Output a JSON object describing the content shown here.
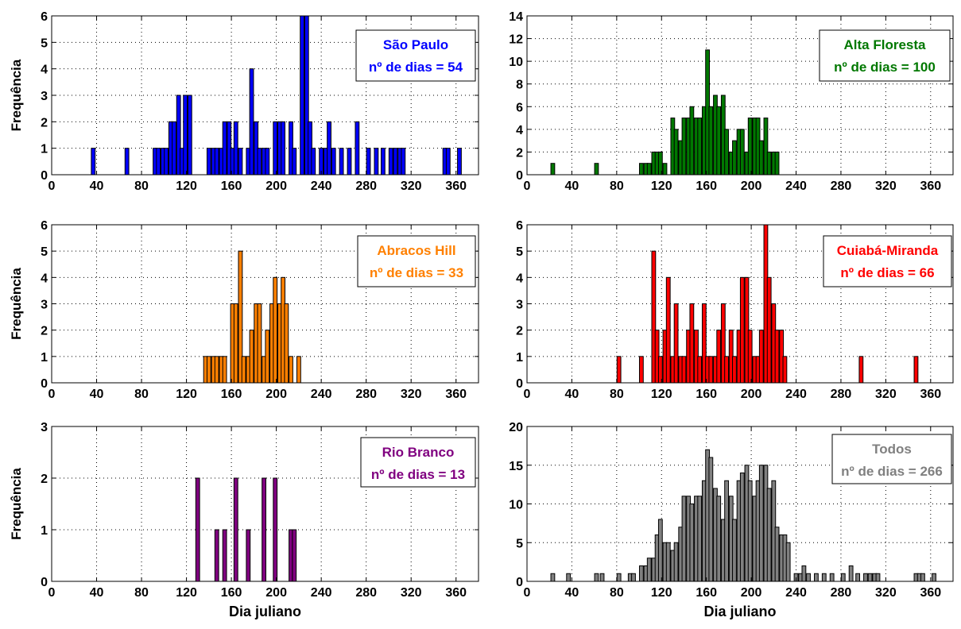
{
  "chart_data": [
    {
      "type": "bar",
      "ylabel": "Frequência",
      "xlabel": "",
      "xlim": [
        0,
        380
      ],
      "ylim": [
        0,
        6
      ],
      "xticks": [
        0,
        40,
        80,
        120,
        160,
        200,
        240,
        280,
        320,
        360
      ],
      "yticks": [
        0,
        1,
        2,
        3,
        4,
        5,
        6
      ],
      "grid": true,
      "color": "#0000ff",
      "legend_position": "top-right",
      "legend": {
        "title": "São Paulo",
        "subtitle": "nº de dias = 54"
      },
      "x": [
        37,
        67,
        92,
        95,
        99,
        102,
        106,
        109,
        113,
        116,
        119,
        123,
        140,
        144,
        147,
        151,
        154,
        158,
        161,
        164,
        168,
        175,
        178,
        182,
        185,
        189,
        192,
        199,
        203,
        206,
        213,
        216,
        223,
        227,
        230,
        233,
        240,
        244,
        247,
        251,
        258,
        265,
        272,
        282,
        289,
        295,
        302,
        306,
        310,
        313,
        350,
        353,
        363
      ],
      "values": [
        1,
        1,
        1,
        1,
        1,
        1,
        2,
        2,
        3,
        1,
        3,
        3,
        1,
        1,
        1,
        1,
        2,
        2,
        1,
        2,
        1,
        1,
        4,
        2,
        1,
        1,
        1,
        2,
        2,
        2,
        2,
        1,
        6,
        6,
        2,
        1,
        1,
        1,
        2,
        1,
        1,
        1,
        2,
        1,
        1,
        1,
        1,
        1,
        1,
        1,
        1,
        1,
        1
      ]
    },
    {
      "type": "bar",
      "ylabel": "",
      "xlabel": "",
      "xlim": [
        0,
        380
      ],
      "ylim": [
        0,
        14
      ],
      "xticks": [
        0,
        40,
        80,
        120,
        160,
        200,
        240,
        280,
        320,
        360
      ],
      "yticks": [
        0,
        2,
        4,
        6,
        8,
        10,
        12,
        14
      ],
      "grid": true,
      "color": "#007800",
      "legend_position": "top-right",
      "legend": {
        "title": "Alta Floresta",
        "subtitle": "nº de dias = 100"
      },
      "x": [
        23,
        62,
        102,
        106,
        109,
        113,
        116,
        119,
        123,
        130,
        133,
        137,
        140,
        144,
        147,
        151,
        154,
        158,
        161,
        164,
        168,
        171,
        175,
        178,
        182,
        185,
        189,
        192,
        196,
        199,
        203,
        206,
        209,
        213,
        216,
        220,
        223
      ],
      "values": [
        1,
        1,
        1,
        1,
        1,
        2,
        2,
        2,
        1,
        5,
        4,
        3,
        5,
        5,
        6,
        5,
        5,
        6,
        11,
        6,
        7,
        6,
        7,
        4,
        2,
        3,
        4,
        4,
        2,
        5,
        5,
        5,
        3,
        5,
        2,
        2,
        2
      ]
    },
    {
      "type": "bar",
      "ylabel": "Frequência",
      "xlabel": "",
      "xlim": [
        0,
        380
      ],
      "ylim": [
        0,
        6
      ],
      "xticks": [
        0,
        40,
        80,
        120,
        160,
        200,
        240,
        280,
        320,
        360
      ],
      "yticks": [
        0,
        1,
        2,
        3,
        4,
        5,
        6
      ],
      "grid": true,
      "color": "#ff8000",
      "legend_position": "top-right",
      "legend": {
        "title": "Abracos Hill",
        "subtitle": "nº de dias = 33"
      },
      "x": [
        137,
        140,
        144,
        147,
        151,
        154,
        161,
        164,
        168,
        171,
        175,
        178,
        182,
        185,
        189,
        192,
        196,
        199,
        203,
        206,
        209,
        213,
        220
      ],
      "values": [
        1,
        1,
        1,
        1,
        1,
        1,
        3,
        3,
        5,
        1,
        1,
        2,
        3,
        3,
        1,
        2,
        3,
        4,
        3,
        4,
        3,
        1,
        1
      ]
    },
    {
      "type": "bar",
      "ylabel": "",
      "xlabel": "",
      "xlim": [
        0,
        380
      ],
      "ylim": [
        0,
        6
      ],
      "xticks": [
        0,
        40,
        80,
        120,
        160,
        200,
        240,
        280,
        320,
        360
      ],
      "yticks": [
        0,
        1,
        2,
        3,
        4,
        5,
        6
      ],
      "grid": true,
      "color": "#ff0000",
      "legend_position": "top-right",
      "legend": {
        "title": "Cuiabá-Miranda",
        "subtitle": "nº de dias = 66"
      },
      "x": [
        82,
        102,
        113,
        116,
        119,
        123,
        126,
        130,
        133,
        137,
        140,
        144,
        147,
        151,
        154,
        158,
        161,
        164,
        168,
        171,
        175,
        178,
        182,
        185,
        189,
        192,
        196,
        199,
        203,
        206,
        209,
        213,
        216,
        220,
        223,
        227,
        230,
        298,
        347
      ],
      "values": [
        1,
        1,
        5,
        2,
        1,
        2,
        4,
        1,
        3,
        1,
        1,
        2,
        3,
        2,
        1,
        3,
        1,
        1,
        1,
        2,
        3,
        1,
        2,
        1,
        2,
        4,
        4,
        2,
        1,
        1,
        2,
        6,
        4,
        3,
        2,
        2,
        1,
        1,
        1
      ]
    },
    {
      "type": "bar",
      "ylabel": "Frequência",
      "xlabel": "Dia juliano",
      "xlim": [
        0,
        380
      ],
      "ylim": [
        0,
        3
      ],
      "xticks": [
        0,
        40,
        80,
        120,
        160,
        200,
        240,
        280,
        320,
        360
      ],
      "yticks": [
        0,
        1,
        2,
        3
      ],
      "grid": true,
      "color": "#800080",
      "legend_position": "top-right",
      "legend": {
        "title": "Rio Branco",
        "subtitle": "nº de dias = 13"
      },
      "x": [
        130,
        147,
        154,
        164,
        175,
        189,
        199,
        213,
        216
      ],
      "values": [
        2,
        1,
        1,
        2,
        1,
        2,
        2,
        1,
        1
      ]
    },
    {
      "type": "bar",
      "ylabel": "",
      "xlabel": "Dia juliano",
      "xlim": [
        0,
        380
      ],
      "ylim": [
        0,
        20
      ],
      "xticks": [
        0,
        40,
        80,
        120,
        160,
        200,
        240,
        280,
        320,
        360
      ],
      "yticks": [
        0,
        5,
        10,
        15,
        20
      ],
      "grid": true,
      "color": "#808080",
      "legend_position": "top-right",
      "legend": {
        "title": "Todos",
        "subtitle": "nº de dias = 266"
      },
      "x": [
        23,
        37,
        62,
        67,
        82,
        92,
        95,
        102,
        106,
        109,
        113,
        116,
        119,
        123,
        126,
        130,
        133,
        137,
        140,
        144,
        147,
        151,
        154,
        158,
        161,
        164,
        168,
        171,
        175,
        178,
        182,
        185,
        189,
        192,
        196,
        199,
        203,
        206,
        209,
        213,
        216,
        220,
        223,
        227,
        230,
        233,
        240,
        244,
        247,
        251,
        258,
        265,
        272,
        282,
        289,
        295,
        302,
        306,
        310,
        313,
        347,
        350,
        353,
        363
      ],
      "values": [
        1,
        1,
        1,
        1,
        1,
        1,
        1,
        2,
        2,
        3,
        3,
        6,
        8,
        5,
        5,
        4,
        5,
        7,
        11,
        11,
        10,
        11,
        11,
        13,
        17,
        16,
        12,
        11,
        8,
        13,
        11,
        8,
        13,
        14,
        15,
        13,
        11,
        13,
        15,
        15,
        12,
        13,
        7,
        6,
        6,
        5,
        1,
        1,
        2,
        1,
        1,
        1,
        1,
        1,
        2,
        1,
        1,
        1,
        1,
        1,
        1,
        1,
        1,
        1
      ]
    }
  ]
}
